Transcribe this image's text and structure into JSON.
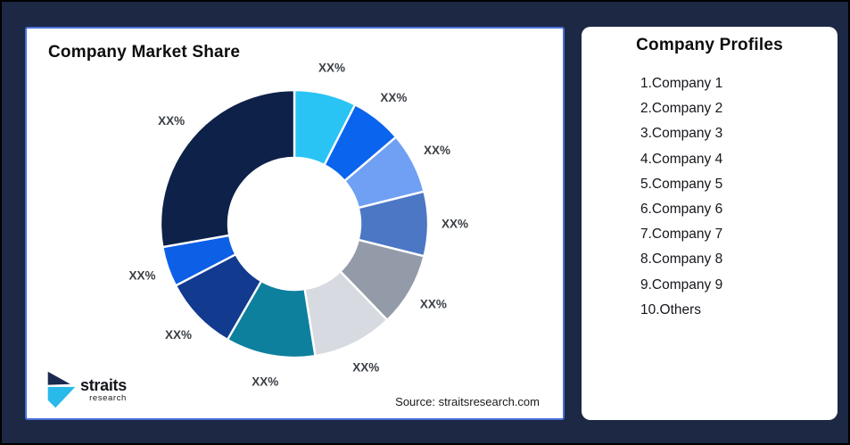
{
  "app": {
    "background_color": "#1C2844",
    "frame_border_color": "#000000"
  },
  "market_share_card": {
    "title": "Company Market Share",
    "border_color": "#4A6FD8",
    "source_text": "Source: straitsresearch.com",
    "logo": {
      "brand": "straits",
      "brand_sub": "research",
      "mark_top_color": "#1B2B4F",
      "mark_bottom_color": "#29B9EA"
    }
  },
  "profiles_card": {
    "title": "Company Profiles",
    "items": [
      "1.Company 1",
      "2.Company 2",
      "3.Company 3",
      "4.Company 4",
      "5.Company 5",
      "6.Company 6",
      "7.Company 7",
      "8.Company 8",
      "9.Company 9",
      "10.Others"
    ]
  },
  "chart_data": {
    "type": "pie",
    "subtype": "donut",
    "title": "Company Market Share",
    "value_label_placeholder": "XX%",
    "label_color": "#3B4046",
    "separator_color": "#FFFFFF",
    "legend": "none",
    "segments": [
      {
        "name": "Company 1",
        "label": "XX%",
        "start_deg": 0,
        "end_deg": 27,
        "color": "#29C4F4"
      },
      {
        "name": "Company 2",
        "label": "XX%",
        "start_deg": 27,
        "end_deg": 49.5,
        "color": "#0A64ED"
      },
      {
        "name": "Company 3",
        "label": "XX%",
        "start_deg": 49.5,
        "end_deg": 76,
        "color": "#6FA0F4"
      },
      {
        "name": "Company 4",
        "label": "XX%",
        "start_deg": 76,
        "end_deg": 104,
        "color": "#4C77C5"
      },
      {
        "name": "Company 5",
        "label": "XX%",
        "start_deg": 104,
        "end_deg": 136,
        "color": "#949BA8"
      },
      {
        "name": "Company 6",
        "label": "XX%",
        "start_deg": 136,
        "end_deg": 171,
        "color": "#D7DBE1"
      },
      {
        "name": "Company 7",
        "label": "XX%",
        "start_deg": 171,
        "end_deg": 210,
        "color": "#0D809E"
      },
      {
        "name": "Company 8",
        "label": "XX%",
        "start_deg": 210,
        "end_deg": 242.5,
        "color": "#123A8F"
      },
      {
        "name": "Company 9",
        "label": "XX%",
        "start_deg": 242.5,
        "end_deg": 260,
        "color": "#0D5FE6"
      },
      {
        "name": "Others",
        "label": "XX%",
        "start_deg": 260,
        "end_deg": 360,
        "color": "#0D2149"
      }
    ]
  }
}
